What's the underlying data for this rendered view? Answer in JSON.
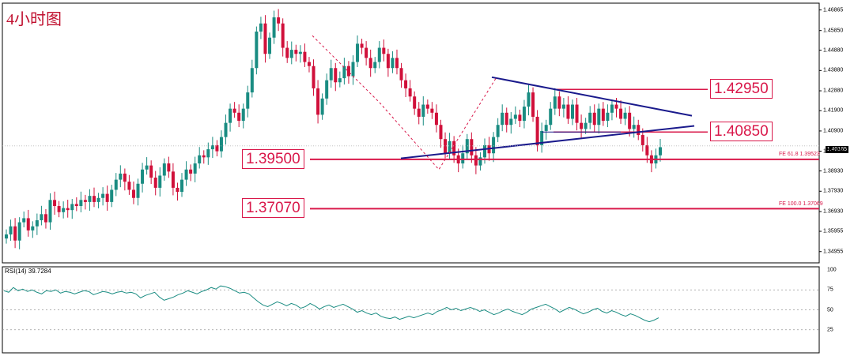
{
  "chart_title": "4小时图",
  "rsi_label": "RSI(14) 39.7284",
  "current_price": "1.40165",
  "colors": {
    "up": "#1a8c82",
    "down": "#d0103a",
    "level": "#d9184a",
    "trend": "#1a1a8c",
    "rsi_line": "#1a8c82"
  },
  "chart_data": {
    "type": "candlestick",
    "ylim": [
      1.344,
      1.472
    ],
    "price_ticks": [
      "1.46865",
      "1.45850",
      "1.44880",
      "1.43880",
      "1.42880",
      "1.41900",
      "1.40900",
      "1.39905",
      "1.38930",
      "1.37930",
      "1.36930",
      "1.35955",
      "1.34955"
    ],
    "levels": [
      {
        "label": "1.42950",
        "value": 1.4295
      },
      {
        "label": "1.40850",
        "value": 1.4085
      },
      {
        "label": "1.39500",
        "value": 1.395
      },
      {
        "label": "1.37070",
        "value": 1.3707
      }
    ],
    "fib_labels": [
      {
        "text": "FE 61.8  1.39523",
        "value": 1.39523
      },
      {
        "text": "FE 100.0  1.37069",
        "value": 1.37069
      }
    ],
    "rsi_ticks": [
      "100",
      "75",
      "50",
      "25"
    ],
    "closes": [
      1.358,
      1.362,
      1.355,
      1.364,
      1.366,
      1.36,
      1.362,
      1.365,
      1.368,
      1.364,
      1.375,
      1.372,
      1.369,
      1.371,
      1.37,
      1.373,
      1.372,
      1.375,
      1.374,
      1.377,
      1.374,
      1.376,
      1.378,
      1.374,
      1.38,
      1.385,
      1.388,
      1.384,
      1.38,
      1.376,
      1.383,
      1.39,
      1.392,
      1.386,
      1.381,
      1.387,
      1.393,
      1.389,
      1.381,
      1.379,
      1.385,
      1.39,
      1.388,
      1.393,
      1.397,
      1.396,
      1.4,
      1.402,
      1.399,
      1.406,
      1.413,
      1.42,
      1.418,
      1.414,
      1.42,
      1.428,
      1.44,
      1.458,
      1.462,
      1.447,
      1.455,
      1.465,
      1.462,
      1.45,
      1.445,
      1.449,
      1.447,
      1.448,
      1.443,
      1.441,
      1.43,
      1.417,
      1.425,
      1.434,
      1.44,
      1.433,
      1.435,
      1.441,
      1.436,
      1.443,
      1.452,
      1.45,
      1.445,
      1.44,
      1.443,
      1.45,
      1.447,
      1.44,
      1.445,
      1.44,
      1.434,
      1.43,
      1.426,
      1.42,
      1.416,
      1.422,
      1.42,
      1.418,
      1.412,
      1.405,
      1.398,
      1.404,
      1.397,
      1.393,
      1.398,
      1.405,
      1.397,
      1.392,
      1.396,
      1.402,
      1.398,
      1.406,
      1.412,
      1.418,
      1.412,
      1.415,
      1.417,
      1.414,
      1.421,
      1.428,
      1.416,
      1.402,
      1.409,
      1.412,
      1.42,
      1.426,
      1.42,
      1.422,
      1.415,
      1.422,
      1.413,
      1.41,
      1.413,
      1.418,
      1.412,
      1.42,
      1.414,
      1.418,
      1.422,
      1.42,
      1.415,
      1.418,
      1.41,
      1.412,
      1.407,
      1.402,
      1.397,
      1.393,
      1.397,
      1.401
    ],
    "rsi": [
      74,
      72,
      78,
      74,
      76,
      73,
      75,
      72,
      70,
      74,
      73,
      75,
      71,
      73,
      72,
      70,
      72,
      74,
      73,
      69,
      71,
      73,
      72,
      70,
      72,
      73,
      71,
      72,
      70,
      65,
      68,
      70,
      72,
      66,
      62,
      64,
      66,
      69,
      71,
      74,
      72,
      70,
      73,
      75,
      78,
      76,
      80,
      79,
      77,
      74,
      71,
      72,
      70,
      65,
      60,
      56,
      54,
      57,
      60,
      58,
      55,
      58,
      56,
      52,
      54,
      58,
      55,
      51,
      54,
      56,
      53,
      55,
      57,
      54,
      51,
      47,
      49,
      46,
      44,
      46,
      42,
      40,
      39,
      41,
      38,
      40,
      42,
      40,
      42,
      44,
      46,
      44,
      48,
      50,
      53,
      50,
      52,
      49,
      51,
      53,
      51,
      48,
      50,
      47,
      44,
      46,
      49,
      51,
      48,
      46,
      44,
      47,
      51,
      53,
      55,
      57,
      54,
      51,
      47,
      50,
      53,
      51,
      48,
      45,
      47,
      50,
      52,
      48,
      46,
      49,
      47,
      44,
      42,
      45,
      43,
      40,
      37,
      35,
      37,
      40
    ]
  }
}
